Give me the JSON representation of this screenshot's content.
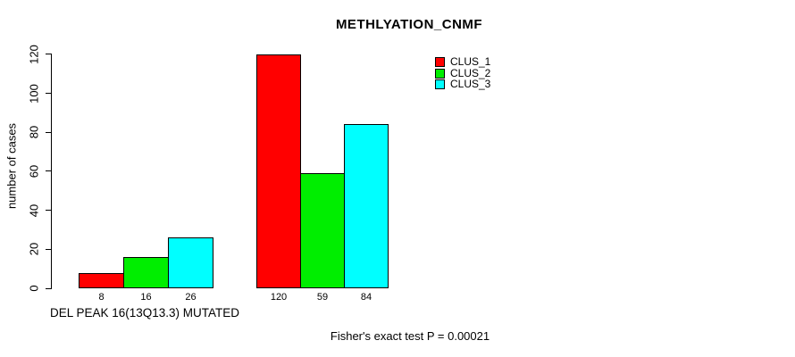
{
  "title": "METHLYATION_CNMF",
  "chart_data": {
    "type": "bar",
    "title": "METHLYATION_CNMF",
    "xlabel": "",
    "ylabel": "number of cases",
    "ylim": [
      0,
      120
    ],
    "y_ticks": [
      0,
      20,
      40,
      60,
      80,
      100,
      120
    ],
    "grid": false,
    "legend_position": "top-right",
    "categories": [
      "DEL PEAK 16(13Q13.3) MUTATED",
      ""
    ],
    "series": [
      {
        "name": "CLUS_1",
        "color": "#ff0000",
        "values": [
          8,
          120
        ]
      },
      {
        "name": "CLUS_2",
        "color": "#00ee00",
        "values": [
          16,
          59
        ]
      },
      {
        "name": "CLUS_3",
        "color": "#00ffff",
        "values": [
          26,
          84
        ]
      }
    ],
    "bar_value_labels_shown": true,
    "annotation": "Fisher's exact test P = 0.00021"
  },
  "colors": {
    "axis": "#000000",
    "text": "#000000",
    "background": "#ffffff"
  }
}
